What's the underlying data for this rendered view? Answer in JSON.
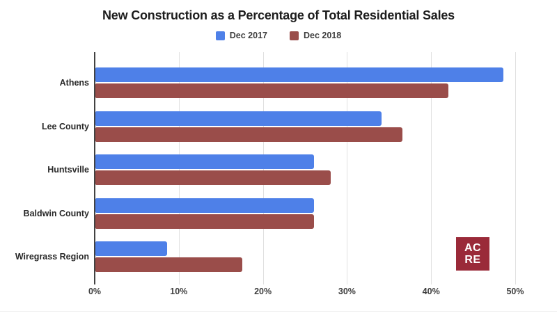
{
  "chart_data": {
    "type": "bar",
    "orientation": "horizontal",
    "title": "New Construction as a Percentage of Total Residential Sales",
    "categories": [
      "Athens",
      "Lee County",
      "Huntsville",
      "Baldwin County",
      "Wiregrass Region"
    ],
    "series": [
      {
        "name": "Dec 2017",
        "color": "#4e80e8",
        "values": [
          48.5,
          34,
          26,
          26,
          8.5
        ]
      },
      {
        "name": "Dec 2018",
        "color": "#9a4d4a",
        "values": [
          42,
          36.5,
          28,
          26,
          17.5
        ]
      }
    ],
    "xlabel": "",
    "ylabel": "",
    "xlim": [
      0,
      50
    ],
    "x_ticks": [
      "0%",
      "10%",
      "20%",
      "30%",
      "40%",
      "50%"
    ],
    "x_tick_positions": [
      0,
      10,
      20,
      30,
      40,
      50
    ],
    "grid": true,
    "legend_position": "top"
  },
  "logo": {
    "line1": "AC",
    "line2": "RE",
    "background": "#9a2a39",
    "text_color": "#ffffff"
  },
  "colors": {
    "background": "#ffffff",
    "title_text": "#1d1d1d",
    "axis_line": "#424242",
    "gridline": "#e0e0e0",
    "tick_text": "#3e3e3e",
    "category_text": "#292929"
  }
}
